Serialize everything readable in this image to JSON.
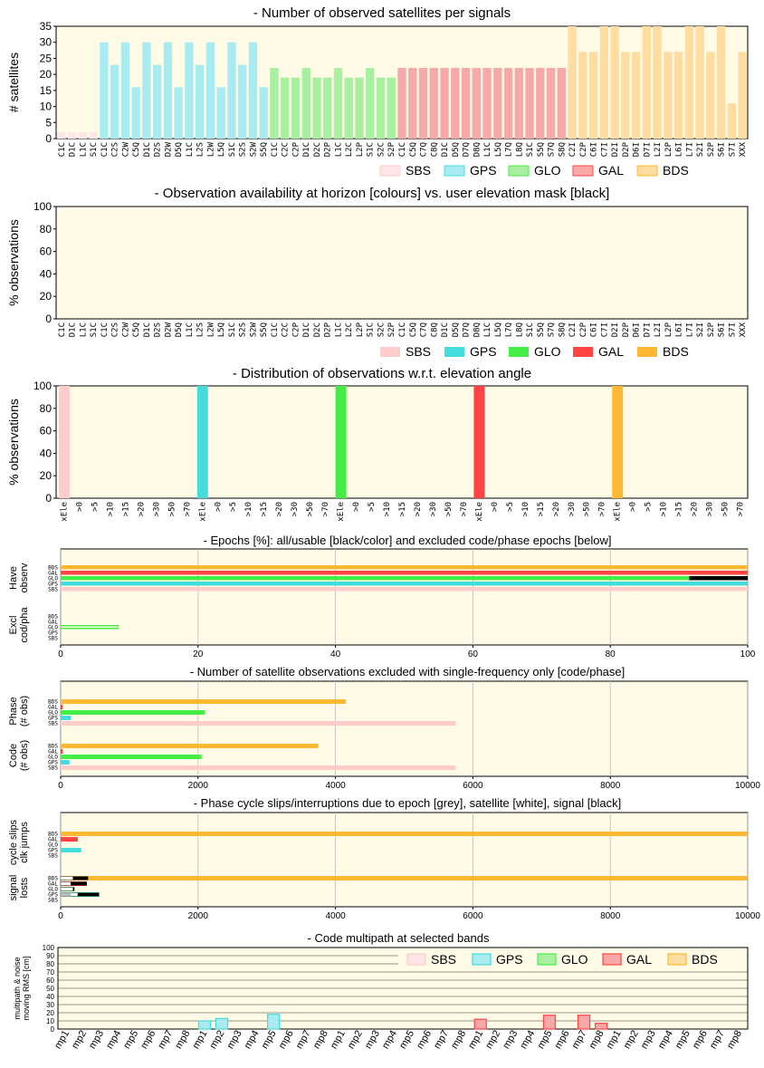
{
  "colors": {
    "panel_bg": "#fffbe6",
    "grid": "#bbbbbb",
    "SBS": "#ffcccc",
    "GPS": "#44dddd",
    "GLO": "#44ee44",
    "GAL": "#ff4444",
    "BDS": "#ffb833",
    "SBS_light": "#ffe6e6",
    "GPS_light": "#a8ecf2",
    "GLO_light": "#a8f0a0",
    "GAL_light": "#f7a8a8",
    "BDS_light": "#ffdda0"
  },
  "systems": [
    "SBS",
    "GPS",
    "GLO",
    "GAL",
    "BDS"
  ],
  "signal_labels": [
    "C1C",
    "D1C",
    "L1C",
    "S1C",
    "C1C",
    "C2S",
    "C2W",
    "C5Q",
    "D1C",
    "D2S",
    "D2W",
    "D5Q",
    "L1C",
    "L2S",
    "L2W",
    "L5Q",
    "S1C",
    "S2S",
    "S2W",
    "S5Q",
    "C1C",
    "C2C",
    "C2P",
    "D1C",
    "D2C",
    "D2P",
    "L1C",
    "L2C",
    "L2P",
    "S1C",
    "S2C",
    "S2P",
    "C1C",
    "C5Q",
    "C7Q",
    "C8Q",
    "D1C",
    "D5Q",
    "D7Q",
    "D8Q",
    "L1C",
    "L5Q",
    "L7Q",
    "L8Q",
    "S1C",
    "S5Q",
    "S7Q",
    "S8Q",
    "C2I",
    "C2P",
    "C6I",
    "C7I",
    "D2I",
    "D2P",
    "D6I",
    "D7I",
    "L2I",
    "L2P",
    "L6I",
    "L7I",
    "S2I",
    "S2P",
    "S6I",
    "S7I",
    "XXX"
  ],
  "signal_systems": [
    "SBS",
    "SBS",
    "SBS",
    "SBS",
    "GPS",
    "GPS",
    "GPS",
    "GPS",
    "GPS",
    "GPS",
    "GPS",
    "GPS",
    "GPS",
    "GPS",
    "GPS",
    "GPS",
    "GPS",
    "GPS",
    "GPS",
    "GPS",
    "GLO",
    "GLO",
    "GLO",
    "GLO",
    "GLO",
    "GLO",
    "GLO",
    "GLO",
    "GLO",
    "GLO",
    "GLO",
    "GLO",
    "GAL",
    "GAL",
    "GAL",
    "GAL",
    "GAL",
    "GAL",
    "GAL",
    "GAL",
    "GAL",
    "GAL",
    "GAL",
    "GAL",
    "GAL",
    "GAL",
    "GAL",
    "GAL",
    "BDS",
    "BDS",
    "BDS",
    "BDS",
    "BDS",
    "BDS",
    "BDS",
    "BDS",
    "BDS",
    "BDS",
    "BDS",
    "BDS",
    "BDS",
    "BDS",
    "BDS",
    "BDS",
    "BDS"
  ],
  "elev_labels": [
    "xEle",
    ">0",
    ">5",
    ">10",
    ">15",
    ">20",
    ">30",
    ">50",
    ">70"
  ],
  "mp_labels": [
    "mp1",
    "mp2",
    "mp3",
    "mp4",
    "mp5",
    "mp6",
    "mp7",
    "mp8"
  ],
  "chart_data": [
    {
      "id": "sats",
      "type": "bar",
      "title": "- Number of observed satellites per signals",
      "ylabel": "# satellites",
      "ylim": [
        0,
        35
      ],
      "yticks": [
        0,
        5,
        10,
        15,
        20,
        25,
        30,
        35
      ],
      "values": [
        2,
        2,
        2,
        2,
        30,
        23,
        30,
        16,
        30,
        23,
        30,
        16,
        30,
        23,
        30,
        16,
        30,
        23,
        30,
        16,
        22,
        19,
        19,
        22,
        19,
        19,
        22,
        19,
        19,
        22,
        19,
        19,
        22,
        22,
        22,
        22,
        22,
        22,
        22,
        22,
        22,
        22,
        22,
        22,
        22,
        22,
        22,
        22,
        35,
        27,
        27,
        35,
        35,
        27,
        27,
        35,
        35,
        27,
        27,
        35,
        35,
        27,
        35,
        11,
        27
      ]
    },
    {
      "id": "horizon",
      "type": "bar",
      "title": "- Observation availability at horizon [colours] vs. user elevation mask [black]",
      "ylabel": "% observations",
      "ylim": [
        0,
        100
      ],
      "yticks": [
        0,
        20,
        40,
        60,
        80,
        100
      ],
      "values": []
    },
    {
      "id": "elev",
      "type": "bar",
      "title": "- Distribution of observations w.r.t. elevation angle",
      "ylabel": "% observations",
      "ylim": [
        0,
        100
      ],
      "yticks": [
        0,
        20,
        40,
        60,
        80,
        100
      ],
      "series": [
        {
          "name": "SBS",
          "values": [
            100,
            0,
            0,
            0,
            0,
            0,
            0,
            0,
            0
          ]
        },
        {
          "name": "GPS",
          "values": [
            100,
            0,
            0,
            0,
            0,
            0,
            0,
            0,
            0
          ]
        },
        {
          "name": "GLO",
          "values": [
            100,
            0,
            0,
            0,
            0,
            0,
            0,
            0,
            0
          ]
        },
        {
          "name": "GAL",
          "values": [
            100,
            0,
            0,
            0,
            0,
            0,
            0,
            0,
            0
          ]
        },
        {
          "name": "BDS",
          "values": [
            100,
            0,
            0,
            0,
            0,
            0,
            0,
            0,
            0
          ]
        }
      ]
    },
    {
      "id": "epochs",
      "type": "bar",
      "title": "- Epochs [%]: all/usable [black/color] and excluded code/phase epochs [below]",
      "xlim": [
        0,
        100
      ],
      "xticks": [
        0,
        20,
        40,
        60,
        80,
        100
      ],
      "group_labels": [
        [
          "Have",
          "observ"
        ],
        [
          "Excl",
          "cod/pha"
        ]
      ],
      "have_observ": {
        "SBS": [
          100,
          100
        ],
        "GPS": [
          100,
          100
        ],
        "GLO": [
          100,
          91.5
        ],
        "GAL": [
          100,
          100
        ],
        "BDS": [
          100,
          100
        ]
      },
      "excluded": {
        "SBS": [
          0,
          0
        ],
        "GPS": [
          0,
          0
        ],
        "GLO": [
          8.5,
          8.5
        ],
        "GAL": [
          0,
          0
        ],
        "BDS": [
          0,
          0
        ]
      }
    },
    {
      "id": "singlefreq",
      "type": "bar",
      "title": "- Number of satellite observations excluded with single-frequency only [code/phase]",
      "xlim": [
        0,
        10000
      ],
      "xticks": [
        0,
        2000,
        4000,
        6000,
        8000,
        10000
      ],
      "group_labels": [
        [
          "Phase",
          "(# obs)"
        ],
        [
          "Code",
          "(# obs)"
        ]
      ],
      "phase": {
        "SBS": 5750,
        "GPS": 150,
        "GLO": 2100,
        "GAL": 30,
        "BDS": 4150
      },
      "code": {
        "SBS": 5750,
        "GPS": 130,
        "GLO": 2050,
        "GAL": 30,
        "BDS": 3750
      }
    },
    {
      "id": "slips",
      "type": "bar",
      "title": "- Phase cycle slips/interruptions due to epoch [grey], satellite [white], signal [black]",
      "xlim": [
        0,
        10000
      ],
      "xticks": [
        0,
        2000,
        4000,
        6000,
        8000,
        10000
      ],
      "group_labels": [
        [
          "cycle slips",
          "clk jumps"
        ],
        [
          "signal",
          "losts"
        ]
      ],
      "cycle_slips": {
        "SBS": 0,
        "GPS": 300,
        "GLO": 0,
        "GAL": 250,
        "BDS": 10000
      },
      "signal_losts": {
        "SBS": [
          0,
          0,
          0
        ],
        "GPS": [
          150,
          250,
          560
        ],
        "GLO": [
          0,
          180,
          200
        ],
        "GAL": [
          0,
          150,
          380
        ],
        "BDS": [
          0,
          180,
          400,
          10000
        ]
      }
    },
    {
      "id": "multipath",
      "type": "bar",
      "title": "- Code multipath at selected bands",
      "ylabel_lines": [
        "multipath & noise",
        "moving RMS [cm]"
      ],
      "ylim": [
        0,
        100
      ],
      "yticks": [
        0,
        10,
        20,
        30,
        40,
        50,
        60,
        70,
        80,
        90,
        100
      ],
      "series": [
        {
          "name": "SBS",
          "values": [
            0,
            0,
            0,
            0,
            0,
            0,
            0,
            0
          ]
        },
        {
          "name": "GPS",
          "values": [
            10,
            13,
            0,
            0,
            18,
            0,
            0,
            0
          ]
        },
        {
          "name": "GLO",
          "values": [
            0,
            0,
            0,
            0,
            0,
            0,
            0,
            0
          ]
        },
        {
          "name": "GAL",
          "values": [
            12,
            0,
            0,
            0,
            17,
            0,
            17,
            7
          ]
        },
        {
          "name": "BDS",
          "values": [
            0,
            0,
            0,
            0,
            0,
            0,
            0,
            0
          ]
        }
      ]
    }
  ]
}
